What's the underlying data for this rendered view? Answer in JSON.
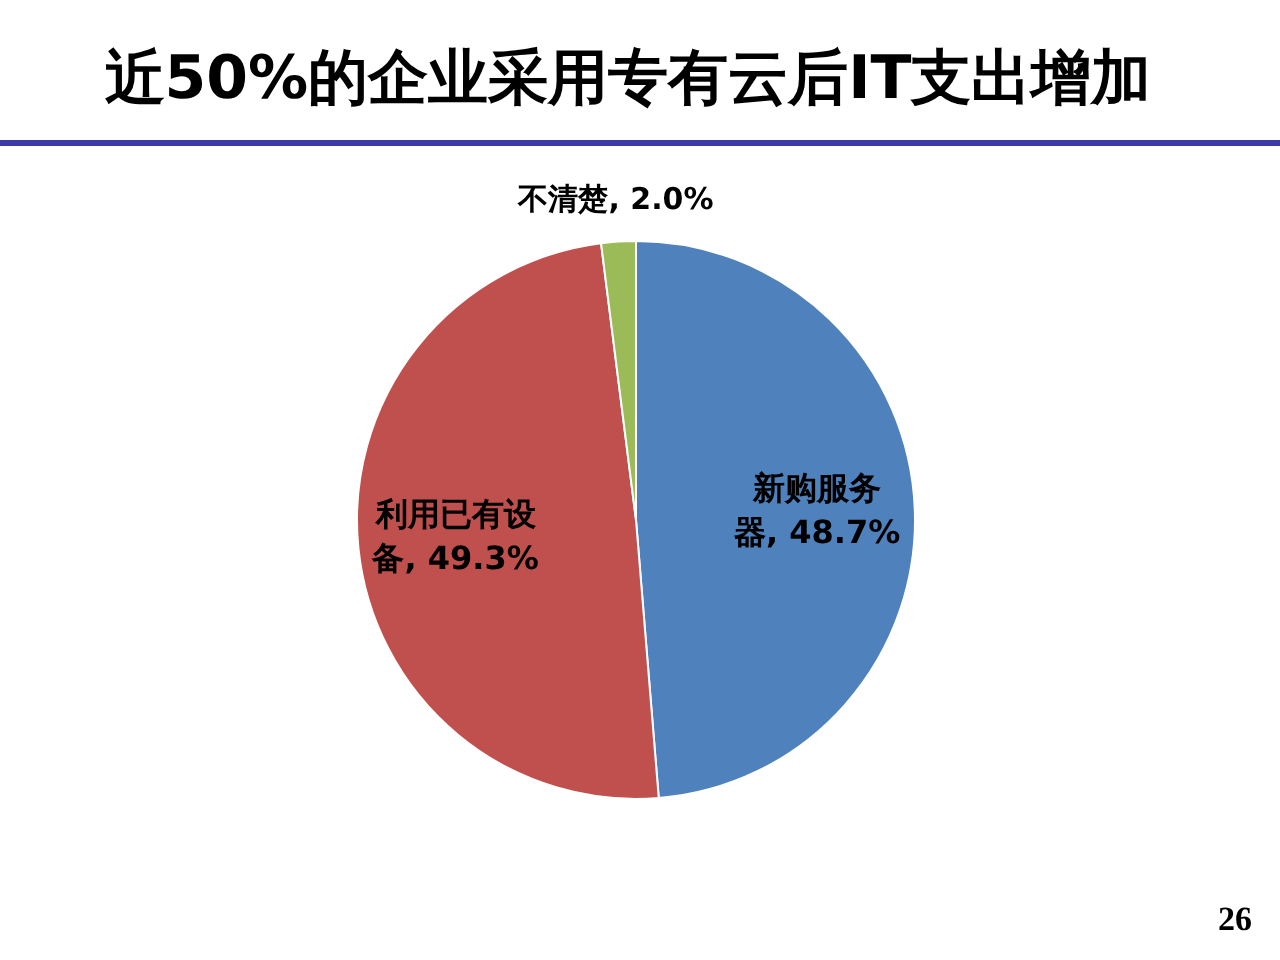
{
  "chart_data": {
    "type": "pie",
    "title": "近50%的企业采用专有云后IT支出增加",
    "categories": [
      "新购服务器",
      "利用已有设备",
      "不清楚"
    ],
    "values": [
      48.7,
      49.3,
      2.0
    ],
    "colors": [
      "#4f81bd",
      "#c0504d",
      "#9bbb59"
    ],
    "value_labels": [
      "48.7%",
      "49.3%",
      "2.0%"
    ],
    "annotations": [
      "26"
    ]
  }
}
